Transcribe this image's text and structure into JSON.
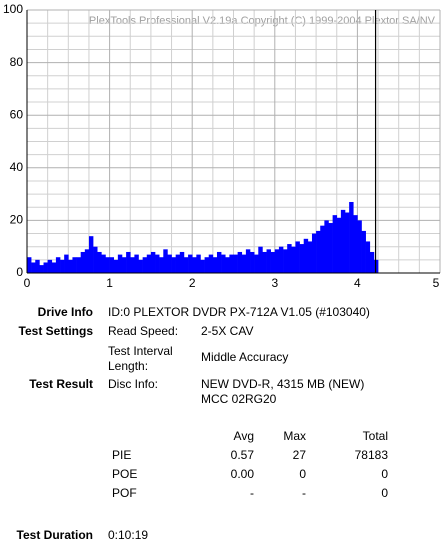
{
  "chart_data": {
    "type": "bar",
    "title": "PlexTools Professional V2.19a Copyright (C) 1999-2004 Plextor SA/NV",
    "x": [
      0,
      0.05,
      0.1,
      0.15,
      0.2,
      0.25,
      0.3,
      0.35,
      0.4,
      0.45,
      0.5,
      0.55,
      0.6,
      0.65,
      0.7,
      0.75,
      0.8,
      0.85,
      0.9,
      0.95,
      1,
      1.05,
      1.1,
      1.15,
      1.2,
      1.25,
      1.3,
      1.35,
      1.4,
      1.45,
      1.5,
      1.55,
      1.6,
      1.65,
      1.7,
      1.75,
      1.8,
      1.85,
      1.9,
      1.95,
      2,
      2.05,
      2.1,
      2.15,
      2.2,
      2.25,
      2.3,
      2.35,
      2.4,
      2.45,
      2.5,
      2.55,
      2.6,
      2.65,
      2.7,
      2.75,
      2.8,
      2.85,
      2.9,
      2.95,
      3,
      3.05,
      3.1,
      3.15,
      3.2,
      3.25,
      3.3,
      3.35,
      3.4,
      3.45,
      3.5,
      3.55,
      3.6,
      3.65,
      3.7,
      3.75,
      3.8,
      3.85,
      3.9,
      3.95,
      4,
      4.05,
      4.1,
      4.15,
      4.2
    ],
    "values": [
      6,
      4,
      5,
      3,
      4,
      5,
      4,
      6,
      5,
      7,
      5,
      6,
      6,
      8,
      9,
      14,
      10,
      8,
      7,
      6,
      6,
      5,
      7,
      6,
      8,
      6,
      7,
      5,
      6,
      7,
      8,
      7,
      6,
      9,
      7,
      6,
      7,
      8,
      6,
      7,
      6,
      7,
      5,
      6,
      7,
      6,
      8,
      7,
      6,
      7,
      7,
      8,
      7,
      9,
      8,
      7,
      10,
      8,
      9,
      8,
      9,
      10,
      9,
      11,
      10,
      12,
      11,
      13,
      12,
      15,
      16,
      18,
      20,
      19,
      22,
      21,
      24,
      23,
      27,
      22,
      20,
      16,
      12,
      8,
      5
    ],
    "color": "#0000ff",
    "xlim": [
      0,
      5
    ],
    "xticks": [
      0,
      1,
      2,
      3,
      4,
      5
    ],
    "ylim": [
      0,
      100
    ],
    "yticks": [
      0,
      20,
      40,
      60,
      80,
      100
    ],
    "grid": true,
    "vlines": [
      4.22
    ]
  },
  "info": {
    "drive_label": "Drive Info",
    "drive_value": "ID:0 PLEXTOR DVDR PX-712A V1.05 (#103040)",
    "settings_label": "Test Settings",
    "read_speed_label": "Read Speed:",
    "read_speed_value": "2-5X CAV",
    "interval_label_1": "Test Interval",
    "interval_label_2": "Length:",
    "interval_value": "Middle Accuracy",
    "result_label": "Test Result",
    "disc_label": "Disc Info:",
    "disc_value_1": "NEW DVD-R, 4315 MB (NEW)",
    "disc_value_2": "MCC 02RG20",
    "duration_label": "Test Duration",
    "duration_value": "0:10:19"
  },
  "table": {
    "header": [
      "Avg",
      "Max",
      "Total"
    ],
    "rows": [
      [
        "PIE",
        "0.57",
        "27",
        "78183"
      ],
      [
        "POE",
        "0.00",
        "0",
        "0"
      ],
      [
        "POF",
        "-",
        "-",
        "0"
      ]
    ]
  }
}
